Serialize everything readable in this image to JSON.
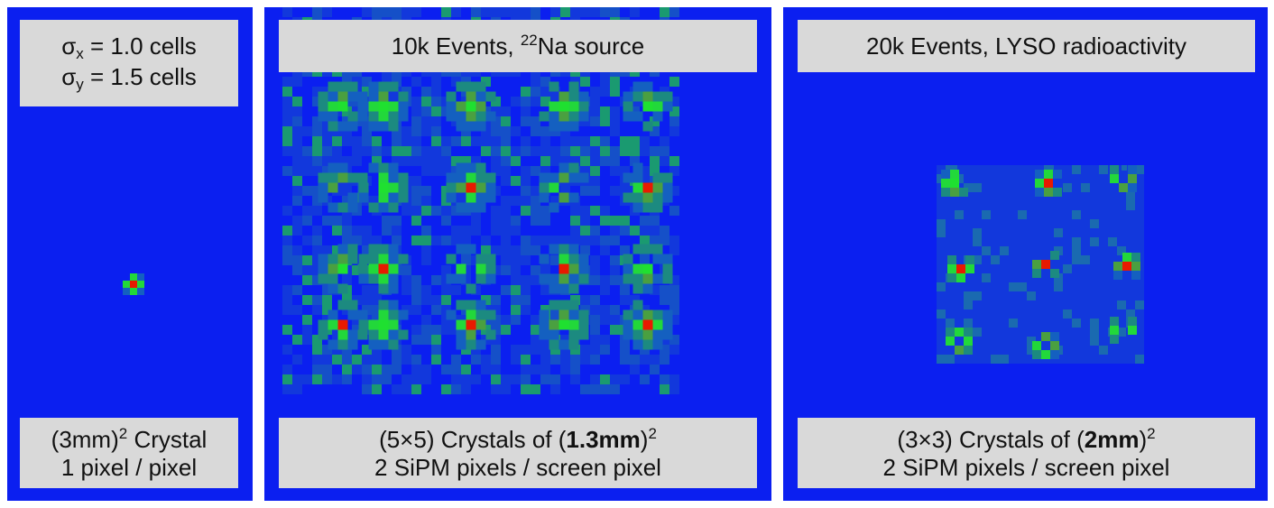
{
  "panels": [
    {
      "top": [
        [
          "σ",
          "x",
          " = 1.0 cells"
        ],
        [
          "σ",
          "y",
          " = 1.5 cells"
        ]
      ],
      "bottom": [
        [
          "(3mm)",
          "2",
          " Crystal"
        ],
        [
          "1 pixel / pixel"
        ]
      ]
    },
    {
      "top": [
        [
          "10k Events, ",
          "22",
          "Na source"
        ]
      ],
      "bottom": [
        [
          "(5×5) Crystals of (",
          "1.3mm",
          ")",
          "2"
        ],
        [
          "2 SiPM pixels / screen pixel"
        ]
      ]
    },
    {
      "top": [
        [
          "20k Events, LYSO radioactivity"
        ]
      ],
      "bottom": [
        [
          "(3×3) Crystals of (",
          "2mm",
          ")",
          "2"
        ],
        [
          "2 SiPM pixels / screen pixel"
        ]
      ]
    }
  ]
}
